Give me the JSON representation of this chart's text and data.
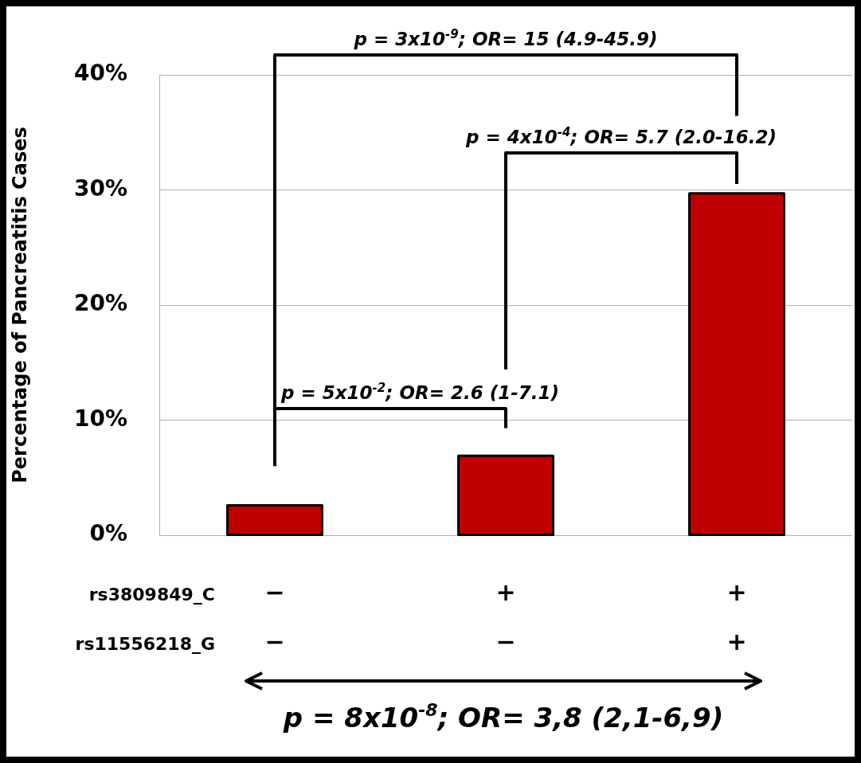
{
  "chart_data": {
    "type": "bar",
    "ylabel": "Percentage of Pancreatitis Cases",
    "categories": [
      "−\n−",
      "+\n−",
      "+\n+"
    ],
    "values": [
      2.6,
      6.9,
      29.7
    ],
    "color": "#c00000",
    "ylim": [
      0,
      40
    ],
    "yticks": [
      {
        "value": 0,
        "label": "0%"
      },
      {
        "value": 10,
        "label": "10%"
      },
      {
        "value": 20,
        "label": "20%"
      },
      {
        "value": 30,
        "label": "30%"
      },
      {
        "value": 40,
        "label": "40%"
      }
    ],
    "grid": "y",
    "legend": false,
    "annotations": [
      "p = 5x10$^{-2}$; OR= 2.6 (1-7.1)",
      "p = 4x10$^{-4}$; OR= 5.7 (2.0-16.2)",
      "p = 3x10$^{-9}$; OR= 15 (4.9-45.9)",
      "p = 8x10$^{-8}$; OR= 3,8 (2,1-6,9)",
      "rs3809849_C",
      "rs11556218_G"
    ]
  }
}
